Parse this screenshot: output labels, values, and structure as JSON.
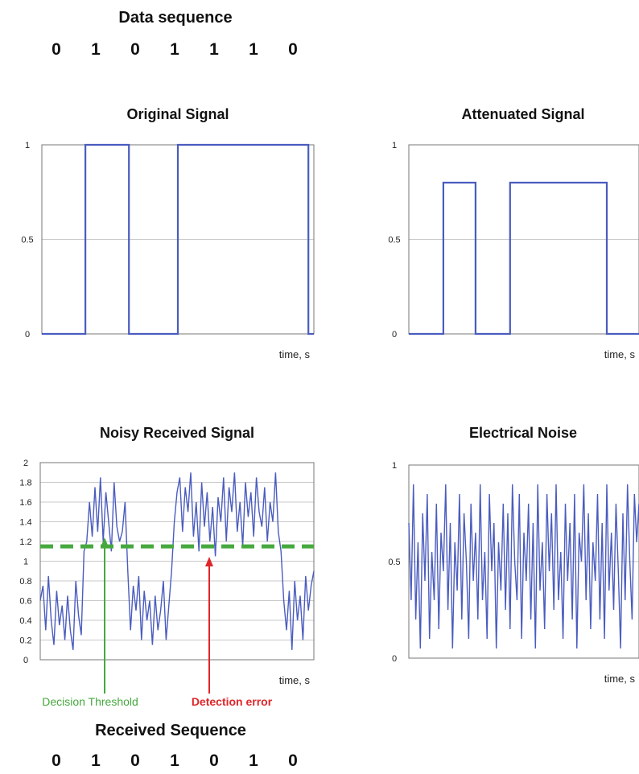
{
  "data_sequence": {
    "title": "Data sequence",
    "bits": [
      "0",
      "1",
      "0",
      "1",
      "1",
      "1",
      "0"
    ]
  },
  "received_sequence": {
    "title": "Received Sequence",
    "bits": [
      "0",
      "1",
      "0",
      "1",
      "0",
      "1",
      "0"
    ],
    "bit_colors": [
      "#111111",
      "#111111",
      "#111111",
      "#1f5f9e",
      "#e0262a",
      "#111111",
      "#111111"
    ]
  },
  "annotations": {
    "threshold_label": "Decision Threshold",
    "threshold_color": "#46a83e",
    "error_label": "Detection error",
    "error_color": "#e0262a"
  },
  "colors": {
    "signal": "#4a5cbf",
    "grid": "#c8c8c8",
    "threshold": "#46a83e"
  },
  "chart_data": [
    {
      "type": "line",
      "title": "Original Signal",
      "xlabel": "time, s",
      "ylim": [
        0,
        1
      ],
      "yticks": [
        "0",
        "0.5",
        "1"
      ],
      "x": [
        0,
        0.16,
        0.16,
        0.32,
        0.32,
        0.5,
        0.5,
        0.98,
        0.98,
        1.0
      ],
      "y": [
        0,
        0,
        1,
        1,
        0,
        0,
        1,
        1,
        0,
        0
      ]
    },
    {
      "type": "line",
      "title": "Attenuated Signal",
      "xlabel": "time, s",
      "ylim": [
        0,
        1
      ],
      "yticks": [
        "0",
        "0.5",
        "1"
      ],
      "x": [
        0,
        0.15,
        0.15,
        0.29,
        0.29,
        0.44,
        0.44,
        0.86,
        0.86,
        1.0
      ],
      "y": [
        0,
        0,
        0.8,
        0.8,
        0,
        0,
        0.8,
        0.8,
        0,
        0
      ]
    },
    {
      "type": "line",
      "title": "Noisy Received Signal",
      "xlabel": "time, s",
      "ylim": [
        0,
        2
      ],
      "yticks": [
        "0",
        "0.2",
        "0.4",
        "0.6",
        "0.8",
        "1",
        "1.2",
        "1.4",
        "1.6",
        "1.8",
        "2"
      ],
      "threshold": 1.15,
      "x": [
        0,
        0.01,
        0.02,
        0.03,
        0.04,
        0.05,
        0.06,
        0.07,
        0.08,
        0.09,
        0.1,
        0.11,
        0.12,
        0.13,
        0.14,
        0.15,
        0.16,
        0.17,
        0.18,
        0.19,
        0.2,
        0.21,
        0.22,
        0.23,
        0.24,
        0.25,
        0.26,
        0.27,
        0.28,
        0.29,
        0.3,
        0.31,
        0.32,
        0.33,
        0.34,
        0.35,
        0.36,
        0.37,
        0.38,
        0.39,
        0.4,
        0.41,
        0.42,
        0.43,
        0.44,
        0.45,
        0.46,
        0.47,
        0.48,
        0.49,
        0.5,
        0.51,
        0.52,
        0.53,
        0.54,
        0.55,
        0.56,
        0.57,
        0.58,
        0.59,
        0.6,
        0.61,
        0.62,
        0.63,
        0.64,
        0.65,
        0.66,
        0.67,
        0.68,
        0.69,
        0.7,
        0.71,
        0.72,
        0.73,
        0.74,
        0.75,
        0.76,
        0.77,
        0.78,
        0.79,
        0.8,
        0.81,
        0.82,
        0.83,
        0.84,
        0.85,
        0.86,
        0.87,
        0.88,
        0.89,
        0.9,
        0.91,
        0.92,
        0.93,
        0.94,
        0.95,
        0.96,
        0.97,
        0.98,
        0.99,
        1.0
      ],
      "y": [
        0.6,
        0.75,
        0.3,
        0.85,
        0.4,
        0.15,
        0.7,
        0.35,
        0.55,
        0.2,
        0.65,
        0.3,
        0.1,
        0.8,
        0.45,
        0.25,
        1.1,
        1.2,
        1.6,
        1.25,
        1.75,
        1.3,
        1.85,
        1.2,
        1.7,
        1.4,
        1.1,
        1.8,
        1.35,
        1.2,
        1.3,
        1.6,
        0.9,
        0.3,
        0.75,
        0.5,
        0.85,
        0.2,
        0.7,
        0.4,
        0.6,
        0.15,
        0.65,
        0.3,
        0.5,
        0.8,
        0.2,
        0.55,
        0.9,
        1.4,
        1.7,
        1.85,
        1.3,
        1.75,
        1.5,
        1.9,
        1.25,
        1.6,
        1.1,
        1.8,
        1.35,
        1.7,
        1.2,
        1.55,
        1.05,
        1.65,
        1.4,
        1.85,
        1.2,
        1.75,
        1.5,
        1.9,
        1.3,
        1.6,
        1.15,
        1.8,
        1.45,
        1.7,
        1.25,
        1.85,
        1.5,
        1.35,
        1.75,
        1.2,
        1.6,
        1.4,
        1.9,
        1.3,
        1.1,
        0.6,
        0.3,
        0.7,
        0.1,
        0.8,
        0.4,
        0.65,
        0.2,
        0.85,
        0.5,
        0.75,
        0.9
      ]
    },
    {
      "type": "line",
      "title": "Electrical Noise",
      "xlabel": "time, s",
      "ylim": [
        0,
        1
      ],
      "yticks": [
        "0",
        "0.5",
        "1"
      ],
      "x": [
        0,
        0.01,
        0.02,
        0.03,
        0.04,
        0.05,
        0.06,
        0.07,
        0.08,
        0.09,
        0.1,
        0.11,
        0.12,
        0.13,
        0.14,
        0.15,
        0.16,
        0.17,
        0.18,
        0.19,
        0.2,
        0.21,
        0.22,
        0.23,
        0.24,
        0.25,
        0.26,
        0.27,
        0.28,
        0.29,
        0.3,
        0.31,
        0.32,
        0.33,
        0.34,
        0.35,
        0.36,
        0.37,
        0.38,
        0.39,
        0.4,
        0.41,
        0.42,
        0.43,
        0.44,
        0.45,
        0.46,
        0.47,
        0.48,
        0.49,
        0.5,
        0.51,
        0.52,
        0.53,
        0.54,
        0.55,
        0.56,
        0.57,
        0.58,
        0.59,
        0.6,
        0.61,
        0.62,
        0.63,
        0.64,
        0.65,
        0.66,
        0.67,
        0.68,
        0.69,
        0.7,
        0.71,
        0.72,
        0.73,
        0.74,
        0.75,
        0.76,
        0.77,
        0.78,
        0.79,
        0.8,
        0.81,
        0.82,
        0.83,
        0.84,
        0.85,
        0.86,
        0.87,
        0.88,
        0.89,
        0.9,
        0.91,
        0.92,
        0.93,
        0.94,
        0.95,
        0.96,
        0.97,
        0.98,
        0.99,
        1.0
      ],
      "y": [
        0.7,
        0.3,
        0.9,
        0.2,
        0.6,
        0.05,
        0.75,
        0.4,
        0.85,
        0.1,
        0.55,
        0.3,
        0.8,
        0.15,
        0.65,
        0.45,
        0.9,
        0.25,
        0.7,
        0.05,
        0.6,
        0.35,
        0.85,
        0.2,
        0.75,
        0.5,
        0.1,
        0.8,
        0.4,
        0.65,
        0.2,
        0.9,
        0.3,
        0.55,
        0.1,
        0.85,
        0.45,
        0.7,
        0.05,
        0.6,
        0.35,
        0.8,
        0.25,
        0.75,
        0.15,
        0.9,
        0.5,
        0.3,
        0.85,
        0.1,
        0.65,
        0.4,
        0.8,
        0.2,
        0.7,
        0.05,
        0.9,
        0.35,
        0.6,
        0.15,
        0.85,
        0.45,
        0.75,
        0.25,
        0.9,
        0.3,
        0.55,
        0.1,
        0.8,
        0.4,
        0.7,
        0.2,
        0.85,
        0.05,
        0.65,
        0.5,
        0.9,
        0.3,
        0.75,
        0.15,
        0.6,
        0.4,
        0.85,
        0.2,
        0.7,
        0.1,
        0.9,
        0.35,
        0.65,
        0.25,
        0.8,
        0.45,
        0.05,
        0.75,
        0.3,
        0.9,
        0.5,
        0.2,
        0.85,
        0.6,
        0.8
      ]
    }
  ]
}
